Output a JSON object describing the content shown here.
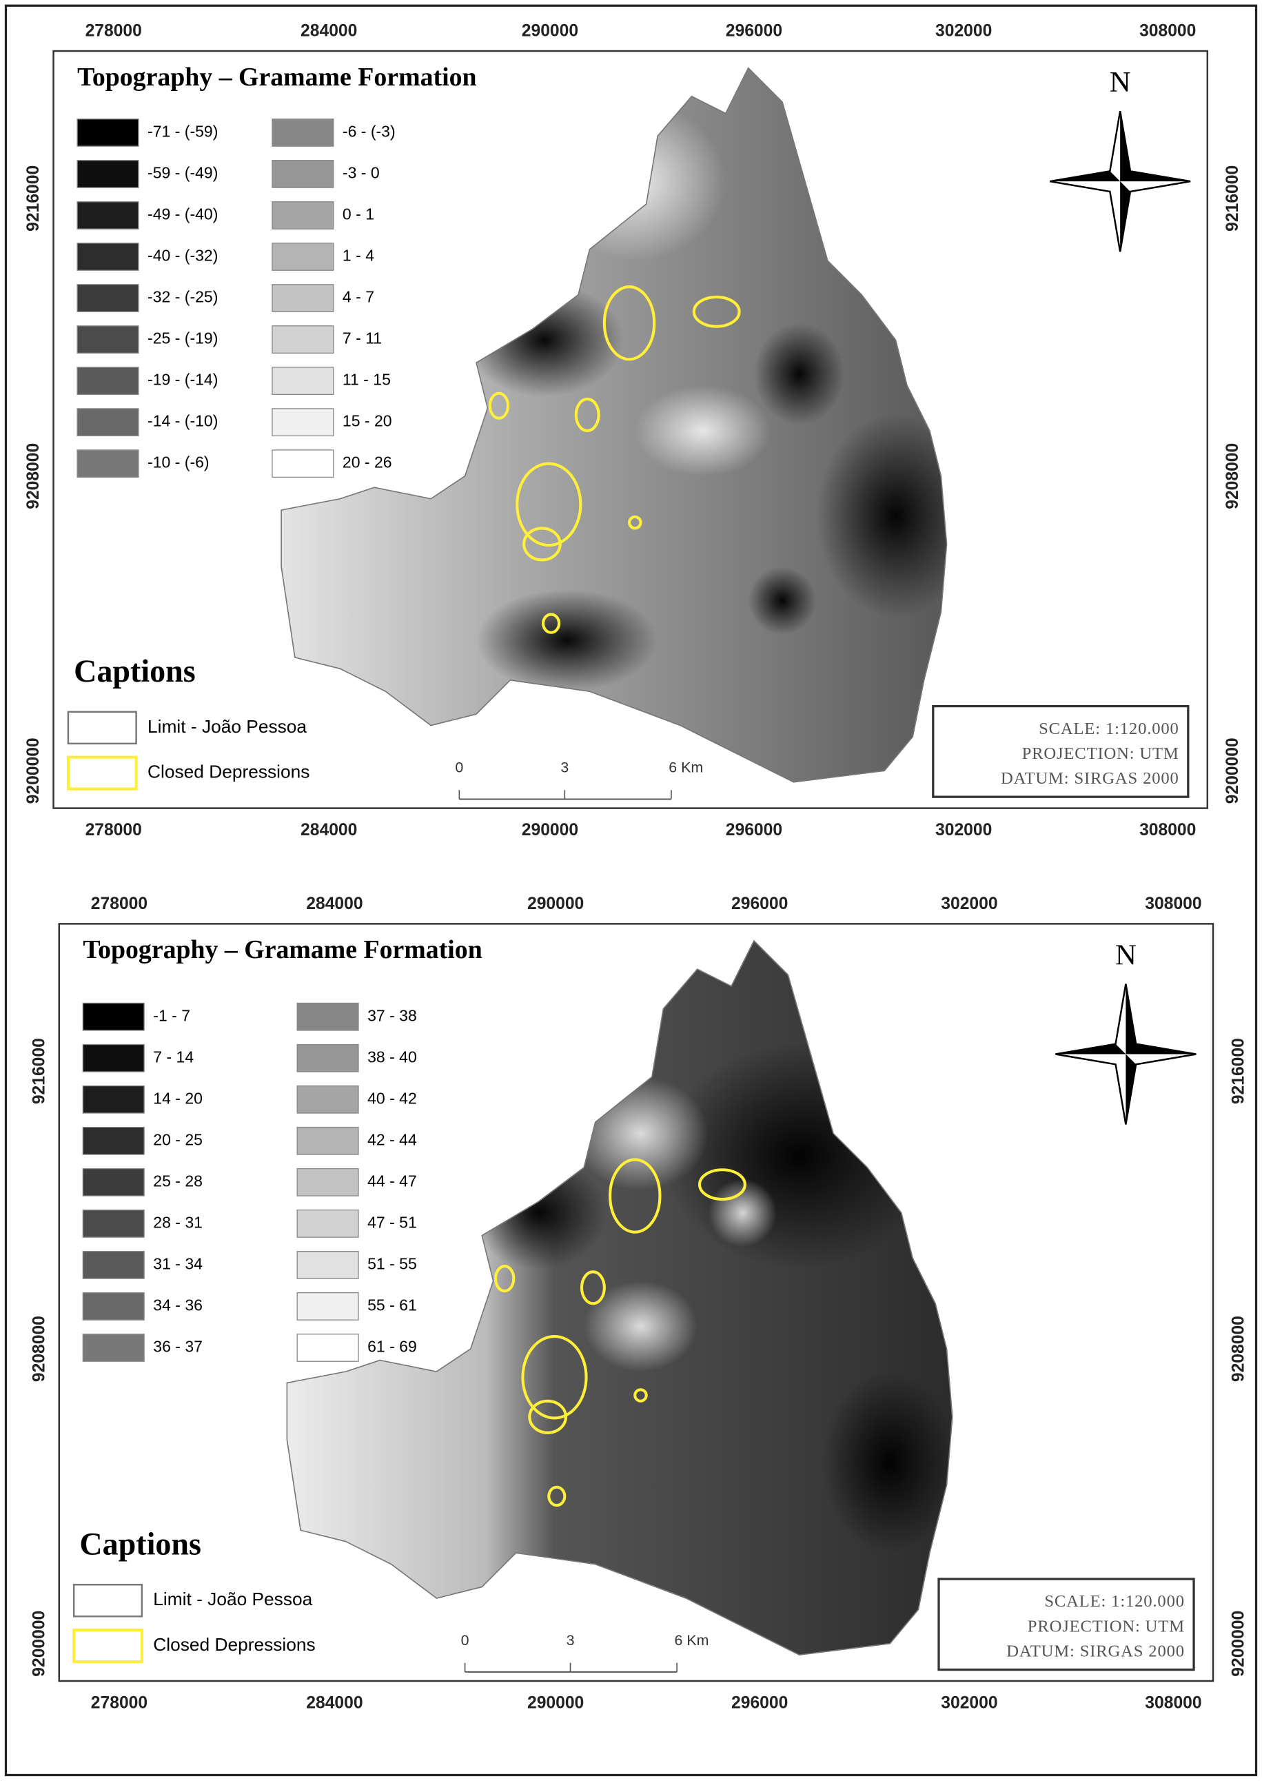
{
  "panels": [
    {
      "title": "Topography – Gramame Formation",
      "legend": [
        "-71 - (-59)",
        "-59 - (-49)",
        "-49 - (-40)",
        "-40 - (-32)",
        "-32 - (-25)",
        "-25 - (-19)",
        "-19 - (-14)",
        "-14 - (-10)",
        "-10 - (-6)",
        "-6 - (-3)",
        "-3 - 0",
        "0 - 1",
        "1 - 4",
        "4 - 7",
        "7 - 11",
        "11 - 15",
        "15 - 20",
        "20 - 26"
      ],
      "x_labels_top": [
        "278000",
        "284000",
        "290000",
        "296000",
        "302000",
        "308000"
      ],
      "x_labels_bottom": [
        "278000",
        "284000",
        "290000",
        "296000",
        "302000",
        "308000"
      ],
      "y_labels_left": [
        "9216000",
        "9208000",
        "9200000"
      ],
      "y_labels_right": [
        "9216000",
        "9208000",
        "9200000"
      ],
      "north": "N",
      "captions": {
        "title": "Captions",
        "items": [
          "Limit - João Pessoa",
          "Closed Depressions"
        ]
      },
      "scale_bar": [
        "0",
        "3",
        "6 Km"
      ],
      "info": [
        "SCALE: 1:120.000",
        "PROJECTION: UTM",
        "DATUM: SIRGAS 2000"
      ]
    },
    {
      "title": "Topography – Gramame Formation",
      "legend": [
        "-1 - 7",
        "7 - 14",
        "14 - 20",
        "20 - 25",
        "25 - 28",
        "28 - 31",
        "31 - 34",
        "34 - 36",
        "36 - 37",
        "37 - 38",
        "38 - 40",
        "40 - 42",
        "42 - 44",
        "44 - 47",
        "47 - 51",
        "51 - 55",
        "55 - 61",
        "61 - 69"
      ],
      "x_labels_top": [
        "278000",
        "284000",
        "290000",
        "296000",
        "302000",
        "308000"
      ],
      "x_labels_bottom": [
        "278000",
        "284000",
        "290000",
        "296000",
        "302000",
        "308000"
      ],
      "y_labels_left": [
        "9216000",
        "9208000",
        "9200000"
      ],
      "y_labels_right": [
        "9216000",
        "9208000",
        "9200000"
      ],
      "north": "N",
      "captions": {
        "title": "Captions",
        "items": [
          "Limit - João Pessoa",
          "Closed Depressions"
        ]
      },
      "scale_bar": [
        "0",
        "3",
        "6 Km"
      ],
      "info": [
        "SCALE: 1:120.000",
        "PROJECTION: UTM",
        "DATUM: SIRGAS 2000"
      ]
    }
  ]
}
